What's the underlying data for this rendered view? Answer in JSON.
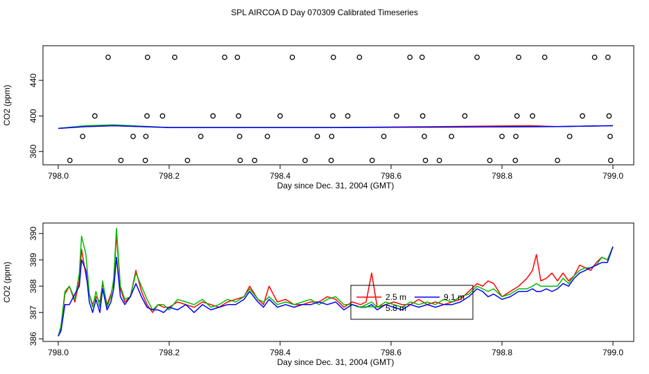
{
  "title": "SPL AIRCOA D  Day 070309  Calibrated Timeseries",
  "chart_data": [
    {
      "type": "line",
      "panel": "top",
      "xlabel": "Day since Dec. 31, 2004 (GMT)",
      "ylabel": "CO2 (ppm)",
      "xlim": [
        798.0,
        799.0
      ],
      "ylim": [
        345,
        479
      ],
      "xticks": [
        "798.0",
        "798.2",
        "798.4",
        "798.6",
        "798.8",
        "799.0"
      ],
      "yticks": [
        "360",
        "400",
        "440"
      ],
      "circles": [
        {
          "x": 798.09,
          "y": 466
        },
        {
          "x": 798.161,
          "y": 466
        },
        {
          "x": 798.21,
          "y": 466
        },
        {
          "x": 798.3,
          "y": 466
        },
        {
          "x": 798.323,
          "y": 466
        },
        {
          "x": 798.422,
          "y": 466
        },
        {
          "x": 798.496,
          "y": 466
        },
        {
          "x": 798.543,
          "y": 466
        },
        {
          "x": 798.634,
          "y": 466
        },
        {
          "x": 798.656,
          "y": 466
        },
        {
          "x": 798.755,
          "y": 466
        },
        {
          "x": 798.83,
          "y": 466
        },
        {
          "x": 798.877,
          "y": 466
        },
        {
          "x": 798.967,
          "y": 466
        },
        {
          "x": 798.991,
          "y": 466
        },
        {
          "x": 798.066,
          "y": 400
        },
        {
          "x": 798.16,
          "y": 400
        },
        {
          "x": 798.188,
          "y": 400
        },
        {
          "x": 798.279,
          "y": 400
        },
        {
          "x": 798.325,
          "y": 400
        },
        {
          "x": 798.4,
          "y": 400
        },
        {
          "x": 798.495,
          "y": 400
        },
        {
          "x": 798.522,
          "y": 400
        },
        {
          "x": 798.61,
          "y": 400
        },
        {
          "x": 798.657,
          "y": 400
        },
        {
          "x": 798.733,
          "y": 400
        },
        {
          "x": 798.827,
          "y": 400
        },
        {
          "x": 798.855,
          "y": 400
        },
        {
          "x": 798.945,
          "y": 400
        },
        {
          "x": 798.993,
          "y": 400
        },
        {
          "x": 798.044,
          "y": 377
        },
        {
          "x": 798.135,
          "y": 377
        },
        {
          "x": 798.158,
          "y": 377
        },
        {
          "x": 798.257,
          "y": 377
        },
        {
          "x": 798.327,
          "y": 377
        },
        {
          "x": 798.377,
          "y": 377
        },
        {
          "x": 798.467,
          "y": 377
        },
        {
          "x": 798.493,
          "y": 377
        },
        {
          "x": 798.587,
          "y": 377
        },
        {
          "x": 798.66,
          "y": 377
        },
        {
          "x": 798.709,
          "y": 377
        },
        {
          "x": 798.8,
          "y": 377
        },
        {
          "x": 798.825,
          "y": 377
        },
        {
          "x": 798.922,
          "y": 377
        },
        {
          "x": 798.995,
          "y": 377
        },
        {
          "x": 798.021,
          "y": 350
        },
        {
          "x": 798.113,
          "y": 350
        },
        {
          "x": 798.157,
          "y": 350
        },
        {
          "x": 798.233,
          "y": 350
        },
        {
          "x": 798.328,
          "y": 350
        },
        {
          "x": 798.354,
          "y": 350
        },
        {
          "x": 798.445,
          "y": 350
        },
        {
          "x": 798.492,
          "y": 350
        },
        {
          "x": 798.566,
          "y": 350
        },
        {
          "x": 798.662,
          "y": 350
        },
        {
          "x": 798.687,
          "y": 350
        },
        {
          "x": 798.778,
          "y": 350
        },
        {
          "x": 798.824,
          "y": 350
        },
        {
          "x": 798.9,
          "y": 350
        },
        {
          "x": 798.996,
          "y": 350
        }
      ],
      "series": [
        {
          "color": "#ff0000",
          "x": [
            798.0,
            798.05,
            798.1,
            798.2,
            798.5,
            798.85,
            798.9,
            799.0
          ],
          "y": [
            386,
            388,
            389,
            387,
            387,
            389,
            388,
            389
          ]
        },
        {
          "color": "#00bb00",
          "x": [
            798.0,
            798.05,
            798.1,
            798.2,
            798.5,
            798.9,
            799.0
          ],
          "y": [
            386,
            389,
            390,
            387,
            387,
            388,
            389
          ]
        },
        {
          "color": "#0000ff",
          "x": [
            798.0,
            798.05,
            798.1,
            798.2,
            798.5,
            798.9,
            799.0
          ],
          "y": [
            386,
            388,
            389,
            387,
            387,
            388,
            389
          ]
        }
      ]
    },
    {
      "type": "line",
      "panel": "bottom",
      "xlabel": "Day since Dec. 31, 2004 (GMT)",
      "ylabel": "CO2 (ppm)",
      "xlim": [
        798.0,
        799.0
      ],
      "ylim": [
        385.9,
        390.4
      ],
      "xticks": [
        "798.0",
        "798.2",
        "798.4",
        "798.6",
        "798.8",
        "799.0"
      ],
      "yticks": [
        "386",
        "387",
        "388",
        "389",
        "390"
      ],
      "legend": {
        "placement": "center-right",
        "entries": [
          {
            "label": "2.5 m",
            "color": "#ff0000"
          },
          {
            "label": "9.1 m",
            "color": "#0000ff"
          },
          {
            "label": "5.8 m",
            "color": "#00bb00"
          }
        ]
      },
      "series": [
        {
          "name": "2.5 m",
          "color": "#ff0000",
          "x": [
            798.0,
            798.005,
            798.012,
            798.02,
            798.03,
            798.038,
            798.042,
            798.05,
            798.056,
            798.062,
            798.068,
            798.075,
            798.08,
            798.088,
            798.095,
            798.1,
            798.105,
            798.112,
            798.12,
            798.13,
            798.14,
            798.15,
            798.16,
            798.17,
            798.18,
            798.19,
            798.2,
            798.215,
            798.23,
            798.245,
            798.26,
            798.275,
            798.29,
            798.305,
            798.32,
            798.335,
            798.345,
            798.36,
            798.37,
            798.38,
            798.395,
            798.41,
            798.425,
            798.44,
            798.455,
            798.47,
            798.485,
            798.5,
            798.515,
            798.53,
            798.545,
            798.555,
            798.565,
            798.575,
            798.59,
            798.605,
            798.62,
            798.635,
            798.65,
            798.665,
            798.68,
            798.695,
            798.71,
            798.725,
            798.74,
            798.755,
            798.765,
            798.775,
            798.785,
            798.8,
            798.815,
            798.83,
            798.845,
            798.855,
            798.862,
            798.87,
            798.88,
            798.89,
            798.9,
            798.91,
            798.92,
            798.93,
            798.94,
            798.95,
            798.96,
            798.97,
            798.98,
            798.99,
            799.0
          ],
          "y": [
            386.1,
            386.4,
            387.7,
            388.0,
            387.4,
            388.2,
            389.4,
            388.4,
            387.7,
            387.3,
            387.6,
            387.4,
            388.1,
            387.3,
            387.7,
            388.1,
            390.0,
            387.9,
            387.4,
            387.6,
            388.6,
            387.8,
            387.3,
            387.0,
            387.3,
            387.2,
            387.2,
            387.4,
            387.3,
            387.2,
            387.4,
            387.3,
            387.2,
            387.4,
            387.5,
            387.6,
            388.0,
            387.5,
            387.3,
            388.0,
            387.4,
            387.5,
            387.3,
            387.3,
            387.4,
            387.4,
            387.6,
            387.5,
            387.2,
            387.4,
            387.3,
            387.4,
            388.5,
            387.2,
            387.3,
            387.4,
            387.3,
            387.3,
            387.5,
            387.3,
            387.4,
            387.3,
            387.4,
            387.5,
            387.8,
            388.1,
            388.0,
            388.2,
            388.1,
            387.6,
            387.8,
            388.0,
            388.3,
            388.6,
            389.2,
            388.2,
            388.3,
            388.5,
            388.2,
            388.5,
            388.2,
            388.4,
            388.8,
            388.7,
            388.6,
            388.9,
            389.1,
            389.0,
            389.5
          ]
        },
        {
          "name": "5.8 m",
          "color": "#00bb00",
          "x": [
            798.0,
            798.005,
            798.012,
            798.02,
            798.03,
            798.038,
            798.042,
            798.05,
            798.056,
            798.062,
            798.068,
            798.075,
            798.08,
            798.088,
            798.095,
            798.1,
            798.105,
            798.112,
            798.12,
            798.13,
            798.14,
            798.15,
            798.16,
            798.17,
            798.18,
            798.19,
            798.2,
            798.215,
            798.23,
            798.245,
            798.26,
            798.275,
            798.29,
            798.305,
            798.32,
            798.335,
            798.345,
            798.36,
            798.37,
            798.38,
            798.395,
            798.41,
            798.425,
            798.44,
            798.455,
            798.47,
            798.485,
            798.5,
            798.515,
            798.53,
            798.545,
            798.555,
            798.565,
            798.575,
            798.59,
            798.605,
            798.62,
            798.635,
            798.65,
            798.665,
            798.68,
            798.695,
            798.71,
            798.725,
            798.74,
            798.755,
            798.765,
            798.775,
            798.785,
            798.8,
            798.815,
            798.83,
            798.845,
            798.855,
            798.862,
            798.87,
            798.88,
            798.89,
            798.9,
            798.91,
            798.92,
            798.93,
            798.94,
            798.95,
            798.96,
            798.97,
            798.98,
            798.99,
            799.0
          ],
          "y": [
            386.1,
            386.5,
            387.8,
            388.0,
            387.5,
            388.5,
            389.9,
            389.2,
            387.7,
            387.2,
            387.8,
            387.2,
            388.2,
            387.2,
            387.6,
            388.3,
            390.2,
            388.0,
            387.5,
            387.6,
            388.5,
            388.0,
            387.5,
            387.1,
            387.3,
            387.3,
            387.1,
            387.5,
            387.4,
            387.3,
            387.5,
            387.2,
            387.3,
            387.5,
            387.4,
            387.6,
            387.9,
            387.5,
            387.4,
            387.6,
            387.3,
            387.4,
            387.3,
            387.4,
            387.5,
            387.3,
            387.5,
            387.6,
            387.3,
            387.3,
            387.2,
            387.3,
            387.4,
            387.2,
            387.4,
            387.3,
            387.2,
            387.4,
            387.3,
            387.4,
            387.3,
            387.5,
            387.4,
            387.6,
            387.7,
            388.0,
            387.9,
            387.8,
            387.9,
            387.6,
            387.7,
            387.9,
            387.9,
            388.0,
            388.1,
            388.0,
            388.0,
            388.0,
            388.0,
            388.3,
            388.1,
            388.4,
            388.6,
            388.7,
            388.7,
            388.8,
            389.1,
            389.0,
            389.5
          ]
        },
        {
          "name": "9.1 m",
          "color": "#0000ff",
          "x": [
            798.0,
            798.005,
            798.012,
            798.02,
            798.03,
            798.038,
            798.042,
            798.05,
            798.056,
            798.062,
            798.068,
            798.075,
            798.08,
            798.088,
            798.095,
            798.1,
            798.105,
            798.112,
            798.12,
            798.13,
            798.14,
            798.15,
            798.16,
            798.17,
            798.18,
            798.19,
            798.2,
            798.215,
            798.23,
            798.245,
            798.26,
            798.275,
            798.29,
            798.305,
            798.32,
            798.335,
            798.345,
            798.36,
            798.37,
            798.38,
            798.395,
            798.41,
            798.425,
            798.44,
            798.455,
            798.47,
            798.485,
            798.5,
            798.515,
            798.53,
            798.545,
            798.555,
            798.565,
            798.575,
            798.59,
            798.605,
            798.62,
            798.635,
            798.65,
            798.665,
            798.68,
            798.695,
            798.71,
            798.725,
            798.74,
            798.755,
            798.765,
            798.775,
            798.785,
            798.8,
            798.815,
            798.83,
            798.845,
            798.855,
            798.862,
            798.87,
            798.88,
            798.89,
            798.9,
            798.91,
            798.92,
            798.93,
            798.94,
            798.95,
            798.96,
            798.97,
            798.98,
            798.99,
            799.0
          ],
          "y": [
            386.1,
            386.3,
            387.3,
            387.3,
            387.7,
            388.0,
            389.0,
            388.6,
            387.4,
            387.0,
            387.5,
            387.0,
            387.9,
            387.1,
            387.4,
            387.9,
            389.1,
            387.6,
            387.3,
            387.6,
            388.1,
            387.6,
            387.2,
            387.1,
            387.1,
            387.0,
            387.2,
            387.1,
            387.3,
            387.0,
            387.3,
            387.1,
            387.2,
            387.3,
            387.3,
            387.5,
            387.8,
            387.4,
            387.2,
            387.5,
            387.2,
            387.3,
            387.2,
            387.3,
            387.3,
            387.4,
            387.3,
            387.4,
            387.1,
            387.3,
            387.2,
            387.2,
            387.3,
            387.1,
            387.3,
            387.2,
            387.1,
            387.3,
            387.2,
            387.3,
            387.2,
            387.3,
            387.3,
            387.4,
            387.6,
            387.9,
            387.8,
            387.6,
            387.7,
            387.5,
            387.6,
            387.8,
            387.8,
            387.9,
            387.8,
            387.8,
            387.9,
            387.8,
            387.9,
            388.1,
            388.0,
            388.3,
            388.5,
            388.6,
            388.7,
            388.8,
            388.9,
            388.9,
            389.5
          ]
        }
      ]
    }
  ]
}
